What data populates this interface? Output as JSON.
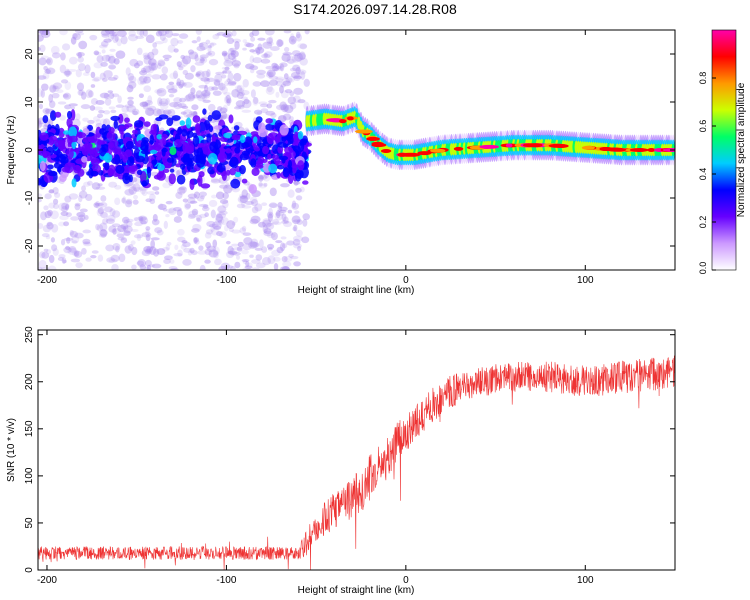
{
  "figure": {
    "title": "S174.2026.097.14.28.R08"
  },
  "chart_data": [
    {
      "type": "heatmap",
      "xlabel": "Height of straight line (km)",
      "ylabel": "Frequency (Hz)",
      "xlim": [
        -205,
        150
      ],
      "ylim": [
        -25,
        25
      ],
      "xticks": [
        -200,
        -100,
        0,
        100
      ],
      "yticks": [
        -20,
        -10,
        0,
        10,
        20
      ],
      "grid": false,
      "ridge": [
        {
          "x": -55,
          "y": 6
        },
        {
          "x": -45,
          "y": 6.5
        },
        {
          "x": -35,
          "y": 6
        },
        {
          "x": -28,
          "y": 7
        },
        {
          "x": -24,
          "y": 4
        },
        {
          "x": -20,
          "y": 3
        },
        {
          "x": -15,
          "y": 1
        },
        {
          "x": -10,
          "y": -0.5
        },
        {
          "x": -5,
          "y": -1
        },
        {
          "x": 5,
          "y": -1
        },
        {
          "x": 20,
          "y": 0
        },
        {
          "x": 40,
          "y": 0.5
        },
        {
          "x": 60,
          "y": 1
        },
        {
          "x": 80,
          "y": 1
        },
        {
          "x": 100,
          "y": 0.5
        },
        {
          "x": 120,
          "y": 0
        },
        {
          "x": 150,
          "y": 0
        }
      ],
      "noise_region_x": [
        -205,
        -55
      ],
      "colorbar": {
        "label": "Normalized spectral amplitude",
        "range": [
          0,
          1
        ],
        "ticks": [
          "0.0",
          "0.2",
          "0.4",
          "0.6",
          "0.8"
        ],
        "colors": [
          "#ffffff",
          "#cc99ff",
          "#6600ff",
          "#0000ff",
          "#00ccff",
          "#00ff66",
          "#ccff00",
          "#ff9900",
          "#ff0000",
          "#ff00aa"
        ]
      }
    },
    {
      "type": "line",
      "xlabel": "Height of straight line (km)",
      "ylabel": "SNR (10 * v/v)",
      "xlim": [
        -205,
        150
      ],
      "ylim": [
        0,
        255
      ],
      "xticks": [
        -200,
        -100,
        0,
        100
      ],
      "yticks": [
        0,
        50,
        100,
        150,
        200,
        250
      ],
      "grid": false,
      "color": "#ee3333",
      "trend": [
        {
          "x": -205,
          "y": 18
        },
        {
          "x": -60,
          "y": 18
        },
        {
          "x": -55,
          "y": 30
        },
        {
          "x": -45,
          "y": 55
        },
        {
          "x": -35,
          "y": 70
        },
        {
          "x": -25,
          "y": 85
        },
        {
          "x": -15,
          "y": 110
        },
        {
          "x": -5,
          "y": 135
        },
        {
          "x": 5,
          "y": 155
        },
        {
          "x": 15,
          "y": 175
        },
        {
          "x": 25,
          "y": 190
        },
        {
          "x": 40,
          "y": 200
        },
        {
          "x": 60,
          "y": 205
        },
        {
          "x": 80,
          "y": 205
        },
        {
          "x": 100,
          "y": 200
        },
        {
          "x": 120,
          "y": 205
        },
        {
          "x": 150,
          "y": 210
        }
      ],
      "noise": [
        {
          "x": -205,
          "y": 7
        },
        {
          "x": -60,
          "y": 7
        },
        {
          "x": -55,
          "y": 15
        },
        {
          "x": -20,
          "y": 25
        },
        {
          "x": 0,
          "y": 20
        },
        {
          "x": 40,
          "y": 16
        },
        {
          "x": 150,
          "y": 18
        }
      ]
    }
  ]
}
